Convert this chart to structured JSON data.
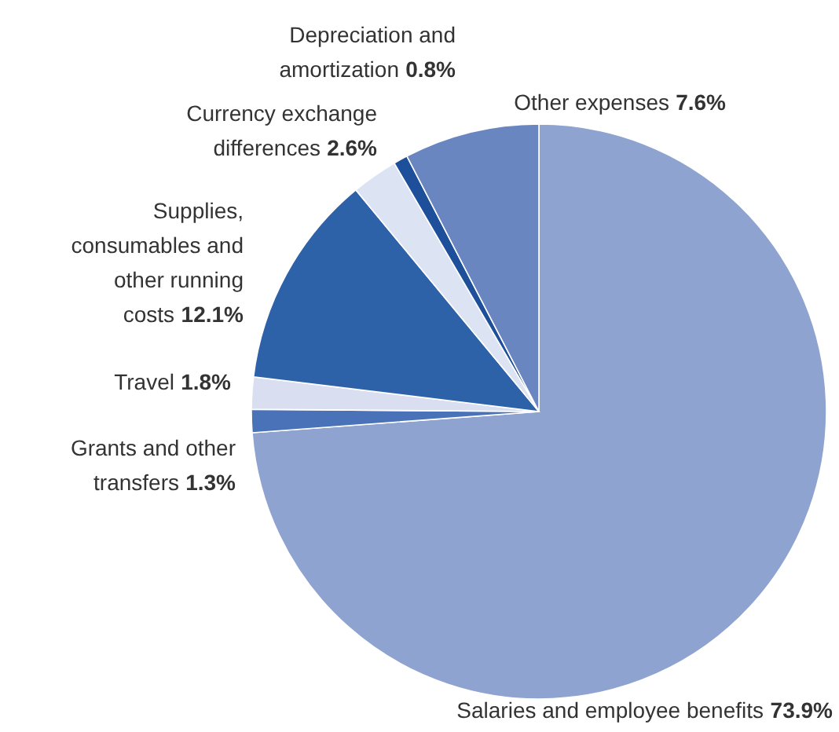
{
  "chart_data": {
    "type": "pie",
    "categories": [
      "Salaries and employee benefits",
      "Grants and other transfers",
      "Travel",
      "Supplies, consumables and other running costs",
      "Currency exchange differences",
      "Depreciation and amortization",
      "Other expenses"
    ],
    "values": [
      73.9,
      1.3,
      1.8,
      12.1,
      2.6,
      0.8,
      7.6
    ],
    "value_labels": [
      "73.9%",
      "1.3%",
      "1.8%",
      "12.1%",
      "2.6%",
      "0.8%",
      "7.6%"
    ],
    "colors": [
      "#8fa3d0",
      "#4a72b8",
      "#d9dff0",
      "#2e62a8",
      "#dce3f2",
      "#1d4f9a",
      "#6a86c0"
    ]
  }
}
